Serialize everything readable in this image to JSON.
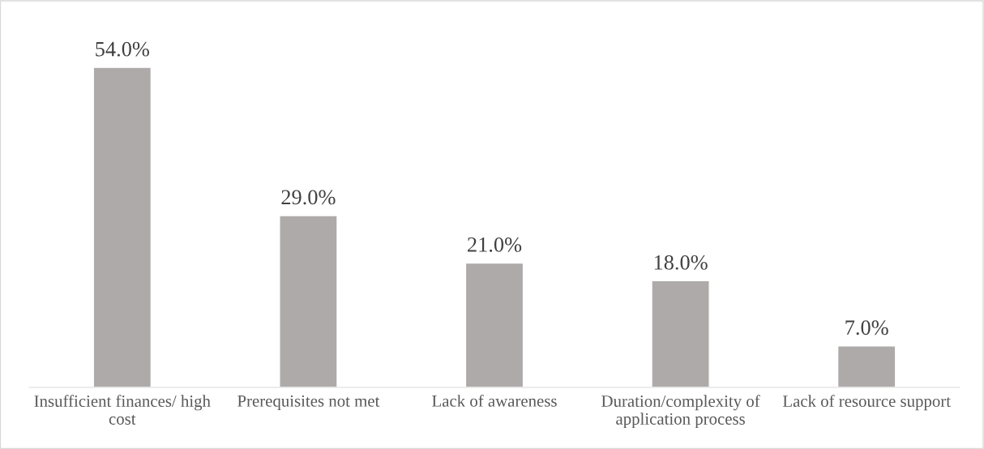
{
  "chart_data": {
    "type": "bar",
    "categories": [
      "Insufficient finances/ high cost",
      "Prerequisites not met",
      "Lack of awareness",
      "Duration/complexity of application process",
      "Lack of resource support"
    ],
    "values": [
      54,
      29,
      21,
      18,
      7
    ],
    "value_labels": [
      "54.0%",
      "29.0%",
      "21.0%",
      "18.0%",
      "7.0%"
    ],
    "color": "#aeaaaa"
  }
}
